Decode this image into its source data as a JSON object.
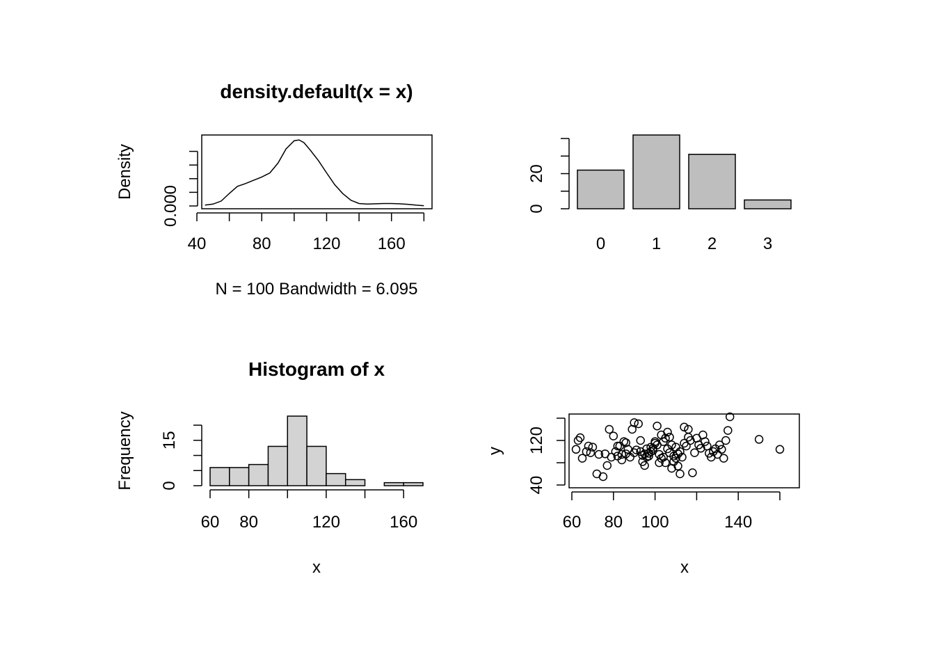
{
  "chart_data": [
    {
      "type": "line",
      "title": "density.default(x = x)",
      "xlabel": "N = 100   Bandwidth = 6.095",
      "ylabel": "Density",
      "xlim": [
        43,
        185
      ],
      "ylim": [
        0,
        0.026
      ],
      "x_ticks": [
        "40",
        "80",
        "120",
        "160"
      ],
      "y_tick_labels": [
        "0.000"
      ],
      "y_tick_values": [
        0,
        0.005,
        0.01,
        0.015,
        0.02
      ],
      "x": [
        45,
        50,
        55,
        60,
        65,
        70,
        75,
        80,
        85,
        90,
        95,
        100,
        103,
        106,
        110,
        115,
        120,
        125,
        130,
        135,
        140,
        145,
        150,
        155,
        160,
        165,
        170,
        175,
        180
      ],
      "y": [
        0.0003,
        0.0007,
        0.0018,
        0.0046,
        0.0072,
        0.0082,
        0.0094,
        0.0106,
        0.0121,
        0.0157,
        0.0209,
        0.0239,
        0.0242,
        0.0232,
        0.0204,
        0.0166,
        0.0121,
        0.0078,
        0.0045,
        0.0021,
        0.0009,
        0.0007,
        0.0008,
        0.0009,
        0.0009,
        0.0008,
        0.0006,
        0.0003,
        0.0001
      ]
    },
    {
      "type": "bar",
      "categories": [
        "0",
        "1",
        "2",
        "3"
      ],
      "values": [
        22,
        42,
        31,
        5
      ],
      "y_ticks": [
        "0",
        "20"
      ],
      "y_tick_values": [
        0,
        10,
        20,
        30,
        40
      ],
      "ylim": [
        0,
        42
      ]
    },
    {
      "type": "bar",
      "title": "Histogram of x",
      "xlabel": "x",
      "ylabel": "Frequency",
      "bins": [
        [
          60,
          70
        ],
        [
          70,
          80
        ],
        [
          80,
          90
        ],
        [
          90,
          100
        ],
        [
          100,
          110
        ],
        [
          110,
          120
        ],
        [
          120,
          130
        ],
        [
          130,
          140
        ],
        [
          140,
          150
        ],
        [
          150,
          160
        ],
        [
          160,
          170
        ]
      ],
      "values": [
        6,
        6,
        7,
        13,
        23,
        13,
        4,
        2,
        0,
        1,
        1
      ],
      "x_ticks": [
        "60",
        "80",
        "120",
        "160"
      ],
      "y_ticks": [
        "0",
        "15"
      ],
      "y_tick_values": [
        0,
        5,
        10,
        15,
        20
      ],
      "xlim": [
        56,
        172
      ],
      "ylim": [
        0,
        23
      ]
    },
    {
      "type": "scatter",
      "xlabel": "x",
      "ylabel": "y",
      "x_ticks": [
        "60",
        "80",
        "100",
        "140"
      ],
      "x_tick_values": [
        60,
        80,
        100,
        120,
        140,
        160
      ],
      "y_ticks": [
        "40",
        "120"
      ],
      "y_tick_values": [
        40,
        80,
        120,
        160
      ],
      "xlim": [
        59,
        170
      ],
      "ylim": [
        40,
        166
      ],
      "points": [
        [
          63,
          120
        ],
        [
          64,
          125
        ],
        [
          67,
          100
        ],
        [
          68,
          110
        ],
        [
          69,
          98
        ],
        [
          70,
          108
        ],
        [
          72,
          60
        ],
        [
          75,
          55
        ],
        [
          78,
          140
        ],
        [
          79,
          90
        ],
        [
          80,
          128
        ],
        [
          81,
          100
        ],
        [
          82,
          110
        ],
        [
          83,
          110
        ],
        [
          84,
          95
        ],
        [
          85,
          118
        ],
        [
          86,
          116
        ],
        [
          88,
          90
        ],
        [
          90,
          98
        ],
        [
          91,
          103
        ],
        [
          93,
          100
        ],
        [
          94,
          93
        ],
        [
          95,
          96
        ],
        [
          96,
          105
        ],
        [
          97,
          97
        ],
        [
          98,
          108
        ],
        [
          99,
          102
        ],
        [
          100,
          118
        ],
        [
          101,
          112
        ],
        [
          102,
          95
        ],
        [
          102,
          80
        ],
        [
          103,
          88
        ],
        [
          104,
          90
        ],
        [
          105,
          80
        ],
        [
          106,
          105
        ],
        [
          107,
          98
        ],
        [
          108,
          70
        ],
        [
          109,
          92
        ],
        [
          110,
          108
        ],
        [
          111,
          74
        ],
        [
          112,
          100
        ],
        [
          113,
          90
        ],
        [
          114,
          115
        ],
        [
          115,
          110
        ],
        [
          116,
          126
        ],
        [
          117,
          120
        ],
        [
          118,
          62
        ],
        [
          119,
          98
        ],
        [
          120,
          124
        ],
        [
          121,
          112
        ],
        [
          122,
          106
        ],
        [
          123,
          130
        ],
        [
          124,
          118
        ],
        [
          125,
          110
        ],
        [
          126,
          97
        ],
        [
          127,
          90
        ],
        [
          128,
          100
        ],
        [
          129,
          105
        ],
        [
          130,
          95
        ],
        [
          131,
          112
        ],
        [
          132,
          104
        ],
        [
          133,
          88
        ],
        [
          134,
          120
        ],
        [
          135,
          138
        ],
        [
          136,
          165
        ],
        [
          150,
          122
        ],
        [
          160,
          104
        ],
        [
          62,
          104
        ],
        [
          65,
          88
        ],
        [
          73,
          95
        ],
        [
          76,
          96
        ],
        [
          77,
          75
        ],
        [
          82,
          92
        ],
        [
          84,
          85
        ],
        [
          86,
          96
        ],
        [
          87,
          104
        ],
        [
          89,
          140
        ],
        [
          90,
          152
        ],
        [
          92,
          150
        ],
        [
          93,
          120
        ],
        [
          94,
          82
        ],
        [
          95,
          75
        ],
        [
          96,
          90
        ],
        [
          97,
          92
        ],
        [
          98,
          100
        ],
        [
          99,
          106
        ],
        [
          100,
          115
        ],
        [
          101,
          146
        ],
        [
          103,
          130
        ],
        [
          104,
          118
        ],
        [
          105,
          124
        ],
        [
          106,
          135
        ],
        [
          107,
          126
        ],
        [
          108,
          112
        ],
        [
          109,
          82
        ],
        [
          110,
          88
        ],
        [
          111,
          96
        ],
        [
          112,
          60
        ],
        [
          114,
          144
        ],
        [
          116,
          140
        ]
      ]
    }
  ]
}
